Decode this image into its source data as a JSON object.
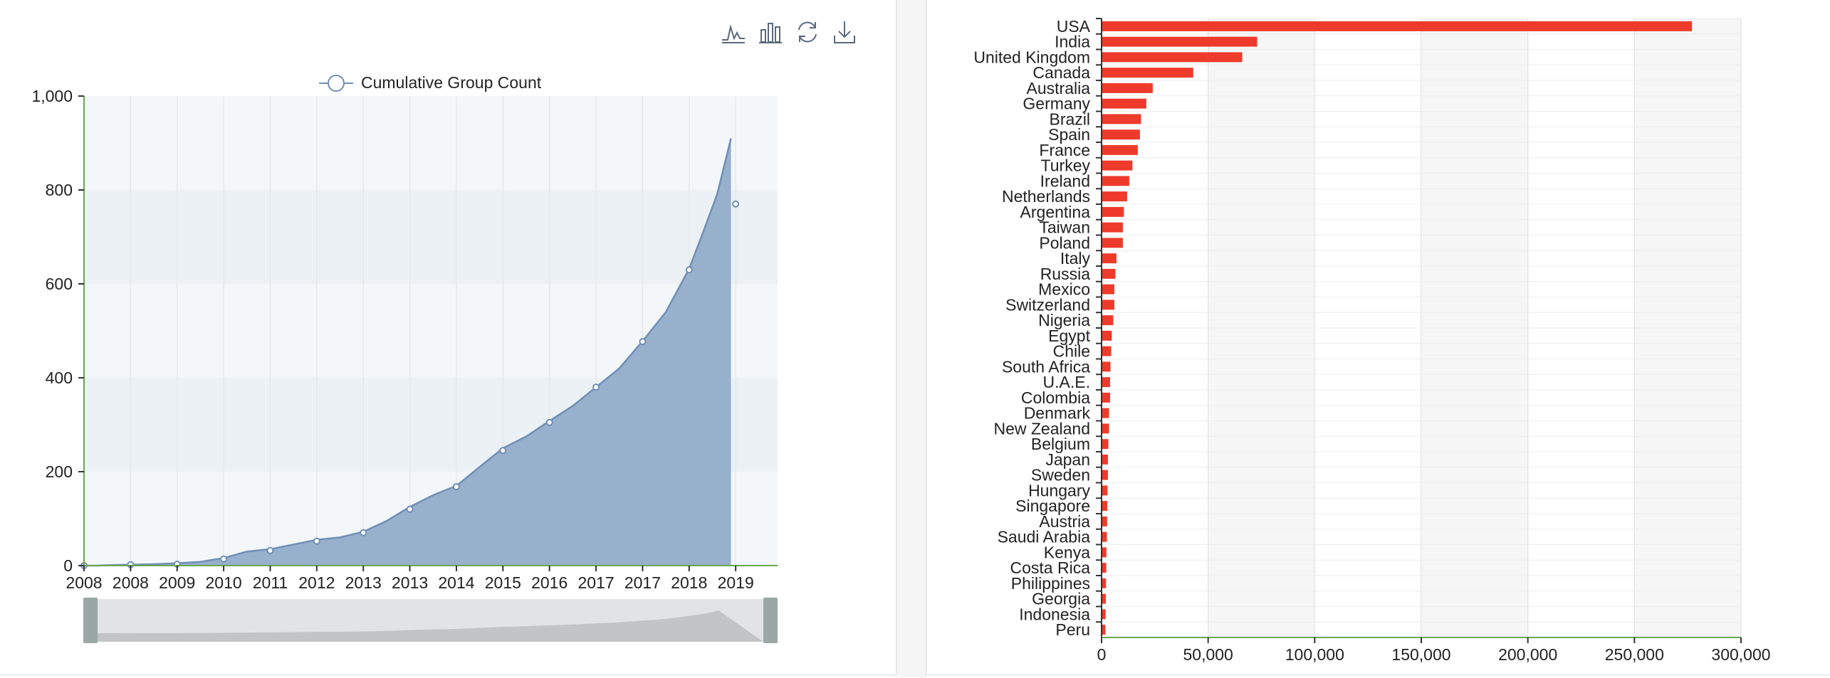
{
  "toolbox": {
    "icons": [
      "line-chart-icon",
      "bar-chart-icon",
      "restore-icon",
      "download-icon"
    ]
  },
  "chart_data": [
    {
      "type": "area",
      "legend": "Cumulative Group Count",
      "legend_position": "top-center",
      "x_ticks": [
        "2008",
        "2008",
        "2009",
        "2010",
        "2011",
        "2012",
        "2013",
        "2013",
        "2014",
        "2015",
        "2016",
        "2017",
        "2017",
        "2018",
        "2019"
      ],
      "y_ticks": [
        "0",
        "200",
        "400",
        "600",
        "800",
        "1,000"
      ],
      "ylim": [
        0,
        1000
      ],
      "series": [
        {
          "x": [
            0.0,
            0.3,
            0.6,
            1.0,
            1.5,
            2.0,
            2.5,
            3.0,
            3.5,
            4.0,
            4.5,
            5.0,
            5.5,
            6.0,
            6.5,
            7.0,
            7.5,
            8.0,
            8.5,
            9.0,
            9.5,
            10.0,
            10.5,
            11.0,
            11.5,
            12.0,
            12.5,
            13.0,
            13.3,
            13.6,
            13.9
          ],
          "y": [
            0,
            0,
            1,
            2,
            3,
            5,
            8,
            16,
            30,
            35,
            45,
            55,
            60,
            72,
            95,
            125,
            150,
            170,
            210,
            250,
            275,
            308,
            340,
            380,
            420,
            478,
            540,
            632,
            710,
            790,
            910
          ],
          "markers_x": [
            0,
            1,
            2,
            3,
            4,
            5,
            6,
            7,
            8,
            9,
            10,
            11,
            12,
            13,
            14
          ],
          "markers_y": [
            0,
            2,
            3,
            14,
            32,
            52,
            70,
            120,
            168,
            245,
            305,
            380,
            477,
            630,
            770
          ]
        }
      ],
      "grid": true,
      "data_zoom_slider": true
    },
    {
      "type": "bar",
      "orientation": "horizontal",
      "categories": [
        "USA",
        "India",
        "United Kingdom",
        "Canada",
        "Australia",
        "Germany",
        "Brazil",
        "Spain",
        "France",
        "Turkey",
        "Ireland",
        "Netherlands",
        "Argentina",
        "Taiwan",
        "Poland",
        "Italy",
        "Russia",
        "Mexico",
        "Switzerland",
        "Nigeria",
        "Egypt",
        "Chile",
        "South Africa",
        "U.A.E.",
        "Colombia",
        "Denmark",
        "New Zealand",
        "Belgium",
        "Japan",
        "Sweden",
        "Hungary",
        "Singapore",
        "Austria",
        "Saudi Arabia",
        "Kenya",
        "Costa Rica",
        "Philippines",
        "Georgia",
        "Indonesia",
        "Peru"
      ],
      "values": [
        277000,
        73000,
        66000,
        43000,
        24000,
        21000,
        18500,
        18000,
        17000,
        14500,
        13000,
        12000,
        10500,
        10000,
        10000,
        7000,
        6500,
        6000,
        6000,
        5500,
        4800,
        4500,
        4200,
        4000,
        4000,
        3500,
        3500,
        3200,
        3000,
        3000,
        2800,
        2700,
        2600,
        2500,
        2300,
        2200,
        2100,
        2000,
        1900,
        1800
      ],
      "x_ticks": [
        "0",
        "50,000",
        "100,000",
        "150,000",
        "200,000",
        "250,000",
        "300,000"
      ],
      "xlim": [
        0,
        300000
      ],
      "color": "#ee3a2b",
      "grid": true
    }
  ],
  "colors": {
    "area_fill": "#97b0cc",
    "area_line": "#6f8fb6",
    "plot_bg": "#f3f7fa",
    "slider_handle": "#9aa7a5",
    "bar": "#ee3a2b",
    "axis_green": "#6aa84f"
  }
}
